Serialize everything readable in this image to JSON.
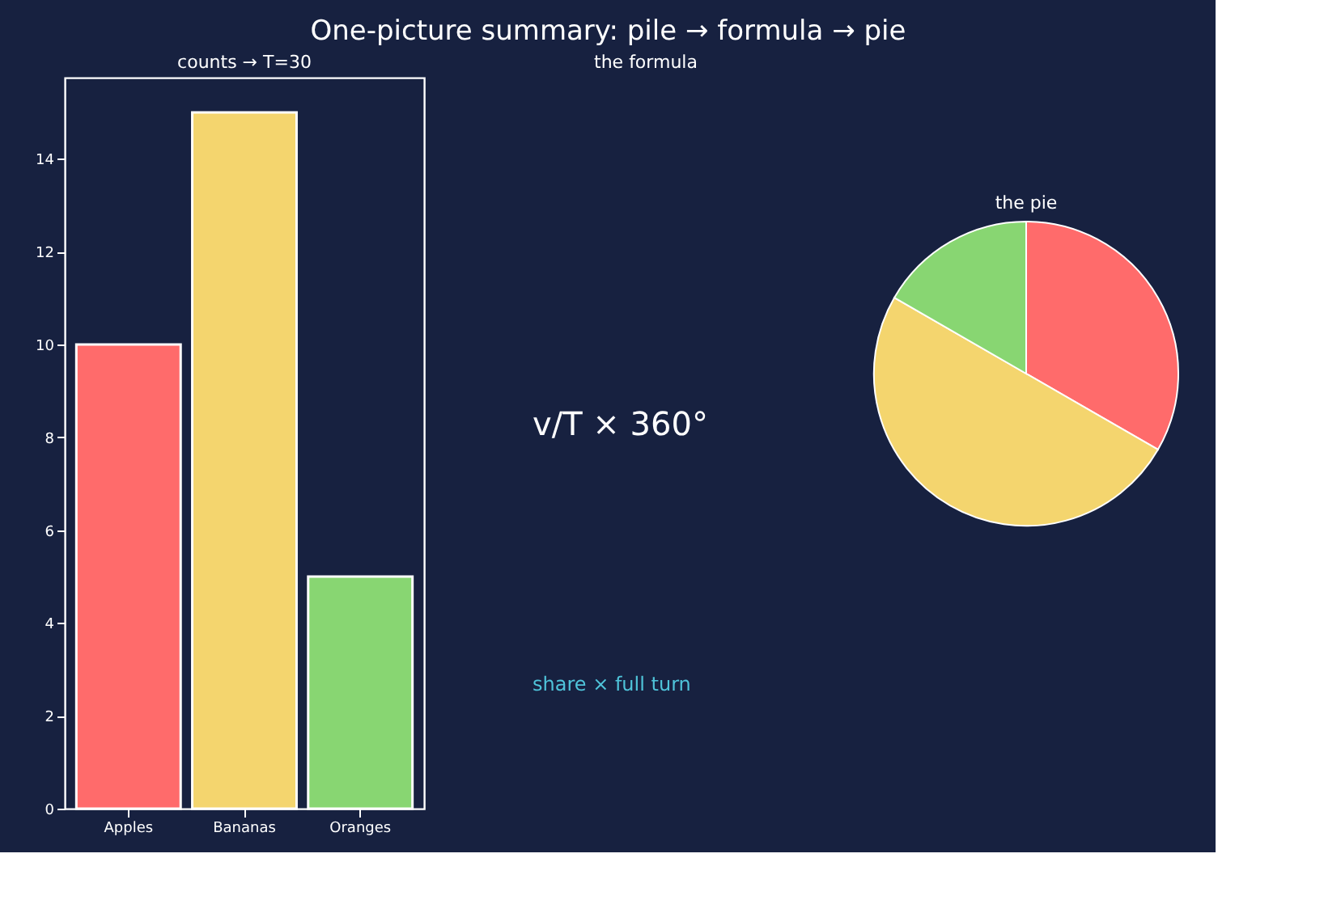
{
  "chart_data": [
    {
      "type": "other",
      "title": "One-picture summary: pile → formula → pie"
    },
    {
      "type": "bar",
      "title": "counts → T=30",
      "categories": [
        "Apples",
        "Bananas",
        "Oranges"
      ],
      "values": [
        10,
        15,
        5
      ],
      "colors": [
        "#ff6b6b",
        "#f4d56e",
        "#88d672"
      ],
      "ylim": [
        0,
        15.75
      ],
      "yticks": [
        0,
        2,
        4,
        6,
        8,
        10,
        12,
        14
      ],
      "grid": false
    },
    {
      "type": "other",
      "title": "the formula",
      "annotations": [
        "v/T × 360°",
        "share × full turn"
      ]
    },
    {
      "type": "pie",
      "title": "the pie",
      "categories": [
        null,
        null,
        null
      ],
      "values": [
        33.33,
        50,
        16.67
      ],
      "colors": [
        "#ff6b6b",
        "#f4d56e",
        "#88d672"
      ]
    }
  ]
}
